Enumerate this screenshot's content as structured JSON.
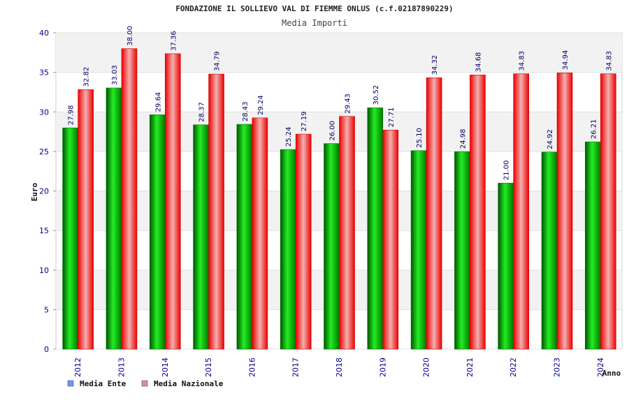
{
  "chart_data": {
    "type": "bar",
    "title": "FONDAZIONE IL SOLLIEVO VAL DI FIEMME ONLUS (c.f.02187890229)",
    "subtitle": "Media Importi",
    "xlabel": "Anno",
    "ylabel": "Euro",
    "ylim": [
      0,
      40
    ],
    "yticks": [
      "0",
      "5",
      "10",
      "15",
      "20",
      "25",
      "30",
      "35",
      "40"
    ],
    "categories": [
      "2012",
      "2013",
      "2014",
      "2015",
      "2016",
      "2017",
      "2018",
      "2019",
      "2020",
      "2021",
      "2022",
      "2023",
      "2024"
    ],
    "series": [
      {
        "name": "Media Ente",
        "color": "#00aa00",
        "legend_color": "#6699ff",
        "values": [
          27.98,
          33.03,
          29.64,
          28.37,
          28.43,
          25.24,
          26.0,
          30.52,
          25.1,
          24.98,
          21.0,
          24.92,
          26.21
        ],
        "labels": [
          "27.98",
          "33.03",
          "29.64",
          "28.37",
          "28.43",
          "25.24",
          "26.00",
          "30.52",
          "25.10",
          "24.98",
          "21.00",
          "24.92",
          "26.21"
        ]
      },
      {
        "name": "Media Nazionale",
        "color": "#ee1111",
        "legend_color": "#dd88aa",
        "values": [
          32.82,
          38.0,
          37.36,
          34.79,
          29.24,
          27.19,
          29.43,
          27.71,
          34.32,
          34.68,
          34.83,
          34.94,
          34.83
        ],
        "labels": [
          "32.82",
          "38.00",
          "37.36",
          "34.79",
          "29.24",
          "27.19",
          "29.43",
          "27.71",
          "34.32",
          "34.68",
          "34.83",
          "34.94",
          "34.83"
        ]
      }
    ],
    "grid": true,
    "legend_position": "bottom-left"
  }
}
